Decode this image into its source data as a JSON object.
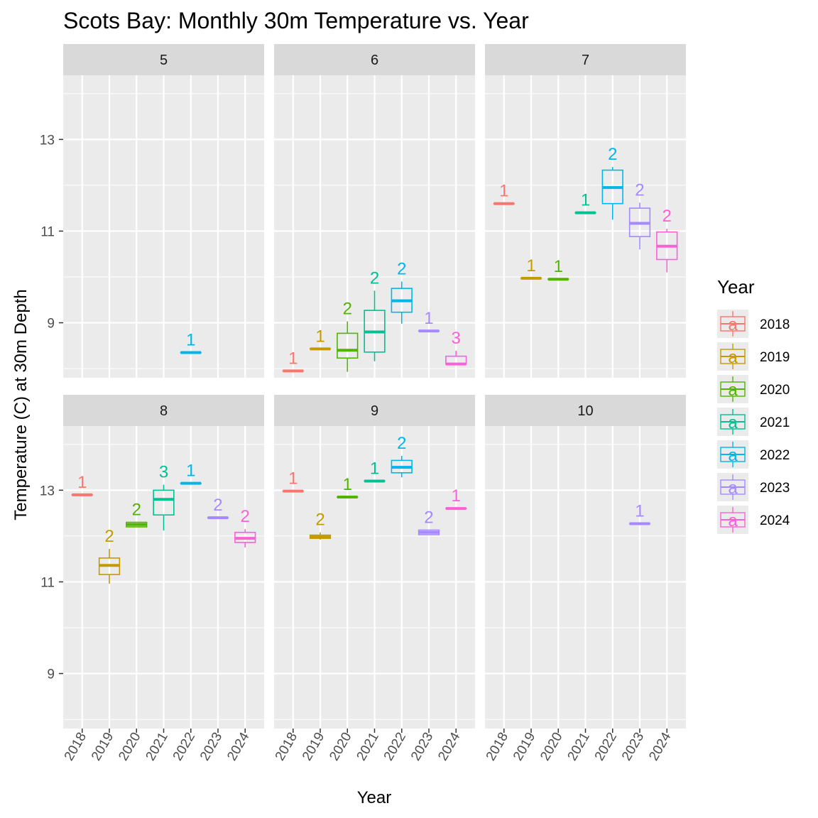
{
  "chart_data": {
    "type": "boxplot",
    "title": "Scots Bay: Monthly 30m Temperature vs. Year",
    "xlabel": "Year",
    "ylabel": "Temperature (C) at 30m Depth",
    "categories": [
      "2018",
      "2019",
      "2020",
      "2021",
      "2022",
      "2023",
      "2024"
    ],
    "ylim": [
      7.8,
      14.4
    ],
    "yticks": [
      9,
      11,
      13
    ],
    "grid": true,
    "legend": {
      "title": "Year",
      "placement": "right",
      "key_glyph": "a",
      "entries": [
        {
          "label": "2018",
          "color": "#F8766D"
        },
        {
          "label": "2019",
          "color": "#C49A00"
        },
        {
          "label": "2020",
          "color": "#53B400"
        },
        {
          "label": "2021",
          "color": "#00C094"
        },
        {
          "label": "2022",
          "color": "#00B6EB"
        },
        {
          "label": "2023",
          "color": "#A58AFF"
        },
        {
          "label": "2024",
          "color": "#FB61D7"
        }
      ]
    },
    "facets": [
      {
        "label": "5",
        "boxes": [
          {
            "year": "2022",
            "min": 8.35,
            "q1": 8.35,
            "median": 8.35,
            "q3": 8.35,
            "max": 8.35,
            "n": "1"
          }
        ]
      },
      {
        "label": "6",
        "boxes": [
          {
            "year": "2018",
            "min": 7.95,
            "q1": 7.95,
            "median": 7.95,
            "q3": 7.95,
            "max": 7.95,
            "n": "1"
          },
          {
            "year": "2019",
            "min": 8.43,
            "q1": 8.43,
            "median": 8.43,
            "q3": 8.43,
            "max": 8.43,
            "n": "1"
          },
          {
            "year": "2020",
            "min": 7.93,
            "q1": 8.23,
            "median": 8.4,
            "q3": 8.77,
            "max": 9.03,
            "n": "2"
          },
          {
            "year": "2021",
            "min": 8.16,
            "q1": 8.36,
            "median": 8.8,
            "q3": 9.27,
            "max": 9.7,
            "n": "2"
          },
          {
            "year": "2022",
            "min": 8.98,
            "q1": 9.23,
            "median": 9.48,
            "q3": 9.75,
            "max": 9.9,
            "n": "2"
          },
          {
            "year": "2023",
            "min": 8.82,
            "q1": 8.82,
            "median": 8.82,
            "q3": 8.82,
            "max": 8.82,
            "n": "1"
          },
          {
            "year": "2024",
            "min": 8.1,
            "q1": 8.1,
            "median": 8.1,
            "q3": 8.27,
            "max": 8.39,
            "n": "3"
          }
        ]
      },
      {
        "label": "7",
        "boxes": [
          {
            "year": "2018",
            "min": 11.6,
            "q1": 11.6,
            "median": 11.6,
            "q3": 11.6,
            "max": 11.6,
            "n": "1"
          },
          {
            "year": "2019",
            "min": 9.97,
            "q1": 9.97,
            "median": 9.97,
            "q3": 9.97,
            "max": 9.97,
            "n": "1"
          },
          {
            "year": "2020",
            "min": 9.95,
            "q1": 9.95,
            "median": 9.95,
            "q3": 9.95,
            "max": 9.95,
            "n": "1"
          },
          {
            "year": "2021",
            "min": 11.4,
            "q1": 11.4,
            "median": 11.4,
            "q3": 11.4,
            "max": 11.4,
            "n": "1"
          },
          {
            "year": "2022",
            "min": 11.25,
            "q1": 11.6,
            "median": 11.95,
            "q3": 12.33,
            "max": 12.4,
            "n": "2"
          },
          {
            "year": "2023",
            "min": 10.6,
            "q1": 10.88,
            "median": 11.17,
            "q3": 11.5,
            "max": 11.62,
            "n": "2"
          },
          {
            "year": "2024",
            "min": 10.1,
            "q1": 10.38,
            "median": 10.67,
            "q3": 10.98,
            "max": 11.05,
            "n": "2"
          }
        ]
      },
      {
        "label": "8",
        "boxes": [
          {
            "year": "2018",
            "min": 12.9,
            "q1": 12.9,
            "median": 12.9,
            "q3": 12.9,
            "max": 12.9,
            "n": "1"
          },
          {
            "year": "2019",
            "min": 10.96,
            "q1": 11.16,
            "median": 11.36,
            "q3": 11.52,
            "max": 11.72,
            "n": "2"
          },
          {
            "year": "2020",
            "min": 12.2,
            "q1": 12.2,
            "median": 12.25,
            "q3": 12.3,
            "max": 12.3,
            "n": "2"
          },
          {
            "year": "2021",
            "min": 12.12,
            "q1": 12.46,
            "median": 12.8,
            "q3": 13.0,
            "max": 13.12,
            "n": "3"
          },
          {
            "year": "2022",
            "min": 13.15,
            "q1": 13.15,
            "median": 13.15,
            "q3": 13.15,
            "max": 13.15,
            "n": "1"
          },
          {
            "year": "2023",
            "min": 12.4,
            "q1": 12.4,
            "median": 12.4,
            "q3": 12.4,
            "max": 12.4,
            "n": "2"
          },
          {
            "year": "2024",
            "min": 11.75,
            "q1": 11.86,
            "median": 11.95,
            "q3": 12.08,
            "max": 12.15,
            "n": "2"
          }
        ]
      },
      {
        "label": "9",
        "boxes": [
          {
            "year": "2018",
            "min": 12.98,
            "q1": 12.98,
            "median": 12.98,
            "q3": 12.98,
            "max": 12.98,
            "n": "1"
          },
          {
            "year": "2019",
            "min": 11.92,
            "q1": 11.95,
            "median": 11.98,
            "q3": 12.02,
            "max": 12.08,
            "n": "2"
          },
          {
            "year": "2020",
            "min": 12.85,
            "q1": 12.85,
            "median": 12.85,
            "q3": 12.85,
            "max": 12.85,
            "n": "1"
          },
          {
            "year": "2021",
            "min": 13.2,
            "q1": 13.2,
            "median": 13.2,
            "q3": 13.2,
            "max": 13.2,
            "n": "1"
          },
          {
            "year": "2022",
            "min": 13.28,
            "q1": 13.38,
            "median": 13.5,
            "q3": 13.65,
            "max": 13.75,
            "n": "2"
          },
          {
            "year": "2023",
            "min": 12.03,
            "q1": 12.03,
            "median": 12.08,
            "q3": 12.13,
            "max": 12.13,
            "n": "2"
          },
          {
            "year": "2024",
            "min": 12.6,
            "q1": 12.6,
            "median": 12.6,
            "q3": 12.6,
            "max": 12.6,
            "n": "1"
          }
        ]
      },
      {
        "label": "10",
        "boxes": [
          {
            "year": "2023",
            "min": 12.27,
            "q1": 12.27,
            "median": 12.27,
            "q3": 12.27,
            "max": 12.27,
            "n": "1"
          }
        ]
      }
    ]
  }
}
